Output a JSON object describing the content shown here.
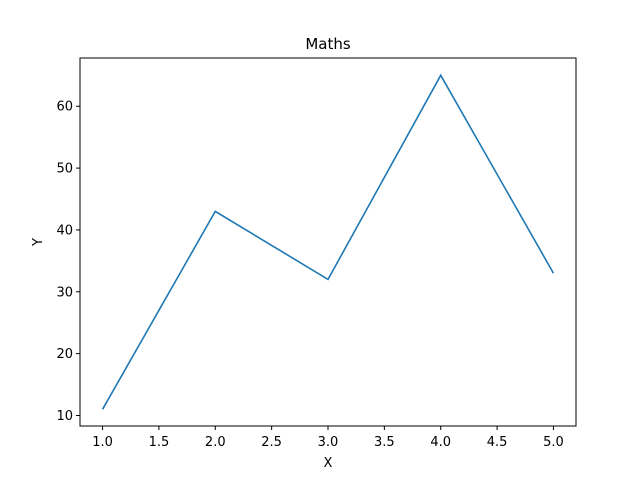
{
  "chart_data": {
    "type": "line",
    "title": "Maths",
    "xlabel": "X",
    "ylabel": "Y",
    "x": [
      1,
      2,
      3,
      4,
      5
    ],
    "series": [
      {
        "values": [
          11,
          43,
          32,
          65,
          33
        ],
        "color": "#1f77b4"
      }
    ],
    "xlim": [
      0.8,
      5.2
    ],
    "ylim": [
      8.3,
      67.8
    ],
    "xticks": [
      1.0,
      1.5,
      2.0,
      2.5,
      3.0,
      3.5,
      4.0,
      4.5,
      5.0
    ],
    "xtick_labels": [
      "1.0",
      "1.5",
      "2.0",
      "2.5",
      "3.0",
      "3.5",
      "4.0",
      "4.5",
      "5.0"
    ],
    "yticks": [
      10,
      20,
      30,
      40,
      50,
      60
    ],
    "ytick_labels": [
      "10",
      "20",
      "30",
      "40",
      "50",
      "60"
    ],
    "grid": false
  }
}
